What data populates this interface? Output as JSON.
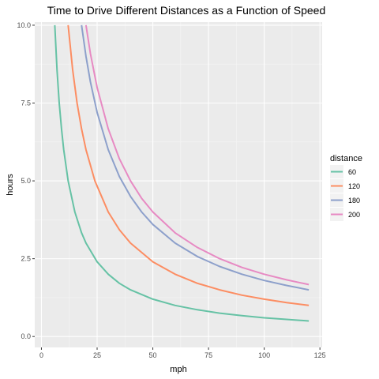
{
  "chart_data": {
    "type": "line",
    "title": "Time to Drive Different Distances as a Function of Speed",
    "xlabel": "mph",
    "ylabel": "hours",
    "xlim": [
      -3,
      126
    ],
    "ylim": [
      -0.35,
      10.1
    ],
    "xticks": [
      0,
      25,
      50,
      75,
      100,
      125
    ],
    "xtick_labels": [
      "0",
      "25",
      "50",
      "75",
      "100",
      "125"
    ],
    "yticks": [
      0.0,
      2.5,
      5.0,
      7.5,
      10.0
    ],
    "ytick_labels": [
      "0.0",
      "2.5",
      "5.0",
      "7.5",
      "10.0"
    ],
    "grid": true,
    "background": "#EBEBEB",
    "legend": {
      "title": "distance",
      "placement": "right",
      "entries": [
        "60",
        "120",
        "180",
        "200"
      ]
    },
    "series": [
      {
        "name": "60",
        "color": "#66C2A5",
        "x": [
          6,
          7,
          8,
          9,
          10,
          12,
          15,
          18,
          20,
          25,
          30,
          35,
          40,
          50,
          60,
          70,
          80,
          90,
          100,
          110,
          120
        ],
        "y": [
          10.0,
          8.57,
          7.5,
          6.67,
          6.0,
          5.0,
          4.0,
          3.33,
          3.0,
          2.4,
          2.0,
          1.71,
          1.5,
          1.2,
          1.0,
          0.86,
          0.75,
          0.67,
          0.6,
          0.55,
          0.5
        ]
      },
      {
        "name": "120",
        "color": "#FC8D62",
        "x": [
          12,
          14,
          16,
          18,
          20,
          24,
          30,
          35,
          40,
          50,
          60,
          70,
          80,
          90,
          100,
          110,
          120
        ],
        "y": [
          10.0,
          8.57,
          7.5,
          6.67,
          6.0,
          5.0,
          4.0,
          3.43,
          3.0,
          2.4,
          2.0,
          1.71,
          1.5,
          1.33,
          1.2,
          1.09,
          1.0
        ]
      },
      {
        "name": "180",
        "color": "#8DA0CB",
        "x": [
          18,
          20,
          22,
          25,
          30,
          35,
          40,
          45,
          50,
          60,
          70,
          80,
          90,
          100,
          110,
          120
        ],
        "y": [
          10.0,
          9.0,
          8.18,
          7.2,
          6.0,
          5.14,
          4.5,
          4.0,
          3.6,
          3.0,
          2.57,
          2.25,
          2.0,
          1.8,
          1.64,
          1.5
        ]
      },
      {
        "name": "200",
        "color": "#E78AC3",
        "x": [
          20,
          22,
          25,
          30,
          35,
          40,
          45,
          50,
          60,
          70,
          80,
          90,
          100,
          110,
          120
        ],
        "y": [
          10.0,
          9.09,
          8.0,
          6.67,
          5.71,
          5.0,
          4.44,
          4.0,
          3.33,
          2.86,
          2.5,
          2.22,
          2.0,
          1.82,
          1.67
        ]
      }
    ]
  }
}
